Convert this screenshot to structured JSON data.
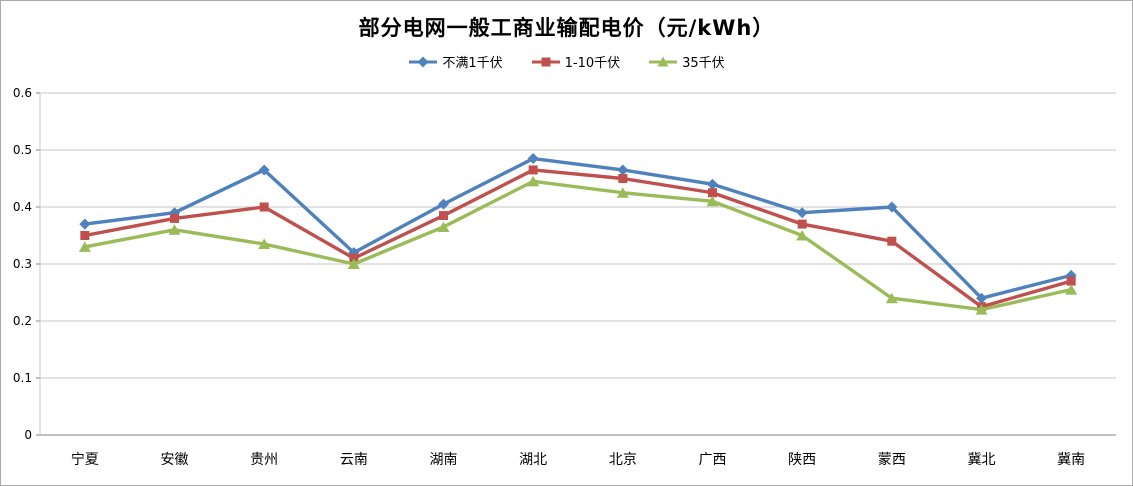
{
  "chart_data": {
    "type": "line",
    "title": "部分电网一般工商业输配电价（元/kWh）",
    "categories": [
      "宁夏",
      "安徽",
      "贵州",
      "云南",
      "湖南",
      "湖北",
      "北京",
      "广西",
      "陕西",
      "蒙西",
      "冀北",
      "冀南"
    ],
    "series": [
      {
        "name": "不满1千伏",
        "marker": "diamond",
        "color": "#4F81BD",
        "values": [
          0.37,
          0.39,
          0.465,
          0.32,
          0.405,
          0.485,
          0.465,
          0.44,
          0.39,
          0.4,
          0.24,
          0.28
        ]
      },
      {
        "name": "1-10千伏",
        "marker": "square",
        "color": "#C0504D",
        "values": [
          0.35,
          0.38,
          0.4,
          0.31,
          0.385,
          0.465,
          0.45,
          0.425,
          0.37,
          0.34,
          0.225,
          0.27
        ]
      },
      {
        "name": "35千伏",
        "marker": "triangle",
        "color": "#9BBB59",
        "values": [
          0.33,
          0.36,
          0.335,
          0.3,
          0.365,
          0.445,
          0.425,
          0.41,
          0.35,
          0.24,
          0.22,
          0.255
        ]
      }
    ],
    "xlabel": "",
    "ylabel": "",
    "ylim": [
      0,
      0.6
    ],
    "y_ticks": [
      "0",
      "0.1",
      "0.2",
      "0.3",
      "0.4",
      "0.5",
      "0.6"
    ],
    "legend_position": "top",
    "grid": "horizontal",
    "gridline_color": "#C6C6C6",
    "axis_color": "#808080",
    "text_color": "#000000"
  }
}
